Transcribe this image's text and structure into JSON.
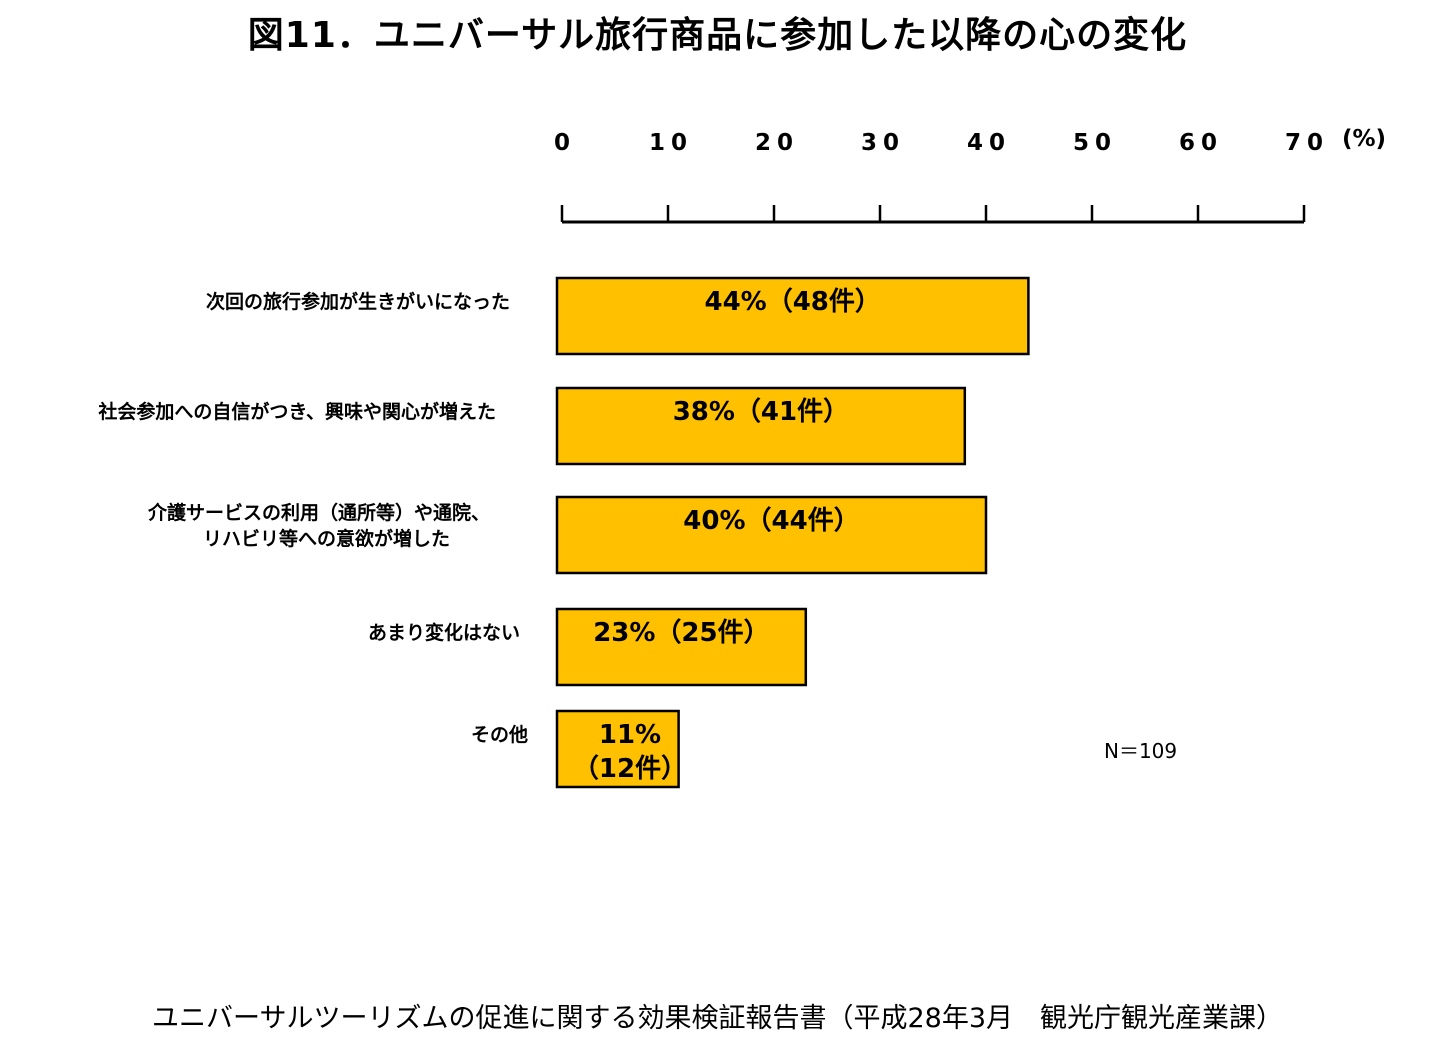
{
  "chart_data": {
    "type": "bar",
    "orientation": "horizontal",
    "title": "図11．ユニバーサル旅行商品に参加した以降の心の変化",
    "unit_label": "(%)",
    "xlim": [
      0,
      70
    ],
    "ticks": [
      "0",
      "10",
      "20",
      "30",
      "40",
      "50",
      "60",
      "70"
    ],
    "categories": [
      [
        "次回の旅行参加が生きがいになった"
      ],
      [
        "社会参加への自信がつき、興味や関心が増えた"
      ],
      [
        "介護サービスの利用（通所等）や通院、",
        "リハビリ等への意欲が増した"
      ],
      [
        "あまり変化はない"
      ],
      [
        "その他"
      ]
    ],
    "values": [
      44,
      38,
      40,
      23,
      11
    ],
    "counts": [
      48,
      41,
      44,
      25,
      12
    ],
    "data_labels": [
      [
        "44%（48件）"
      ],
      [
        "38%（41件）"
      ],
      [
        "40%（44件）"
      ],
      [
        "23%（25件）"
      ],
      [
        "11%",
        "（12件）"
      ]
    ],
    "bar_color": "#FFC000",
    "note": "N＝109",
    "grid": false
  },
  "source": "ユニバーサルツーリズムの促進に関する効果検証報告書（平成28年3月　観光庁観光産業課）"
}
